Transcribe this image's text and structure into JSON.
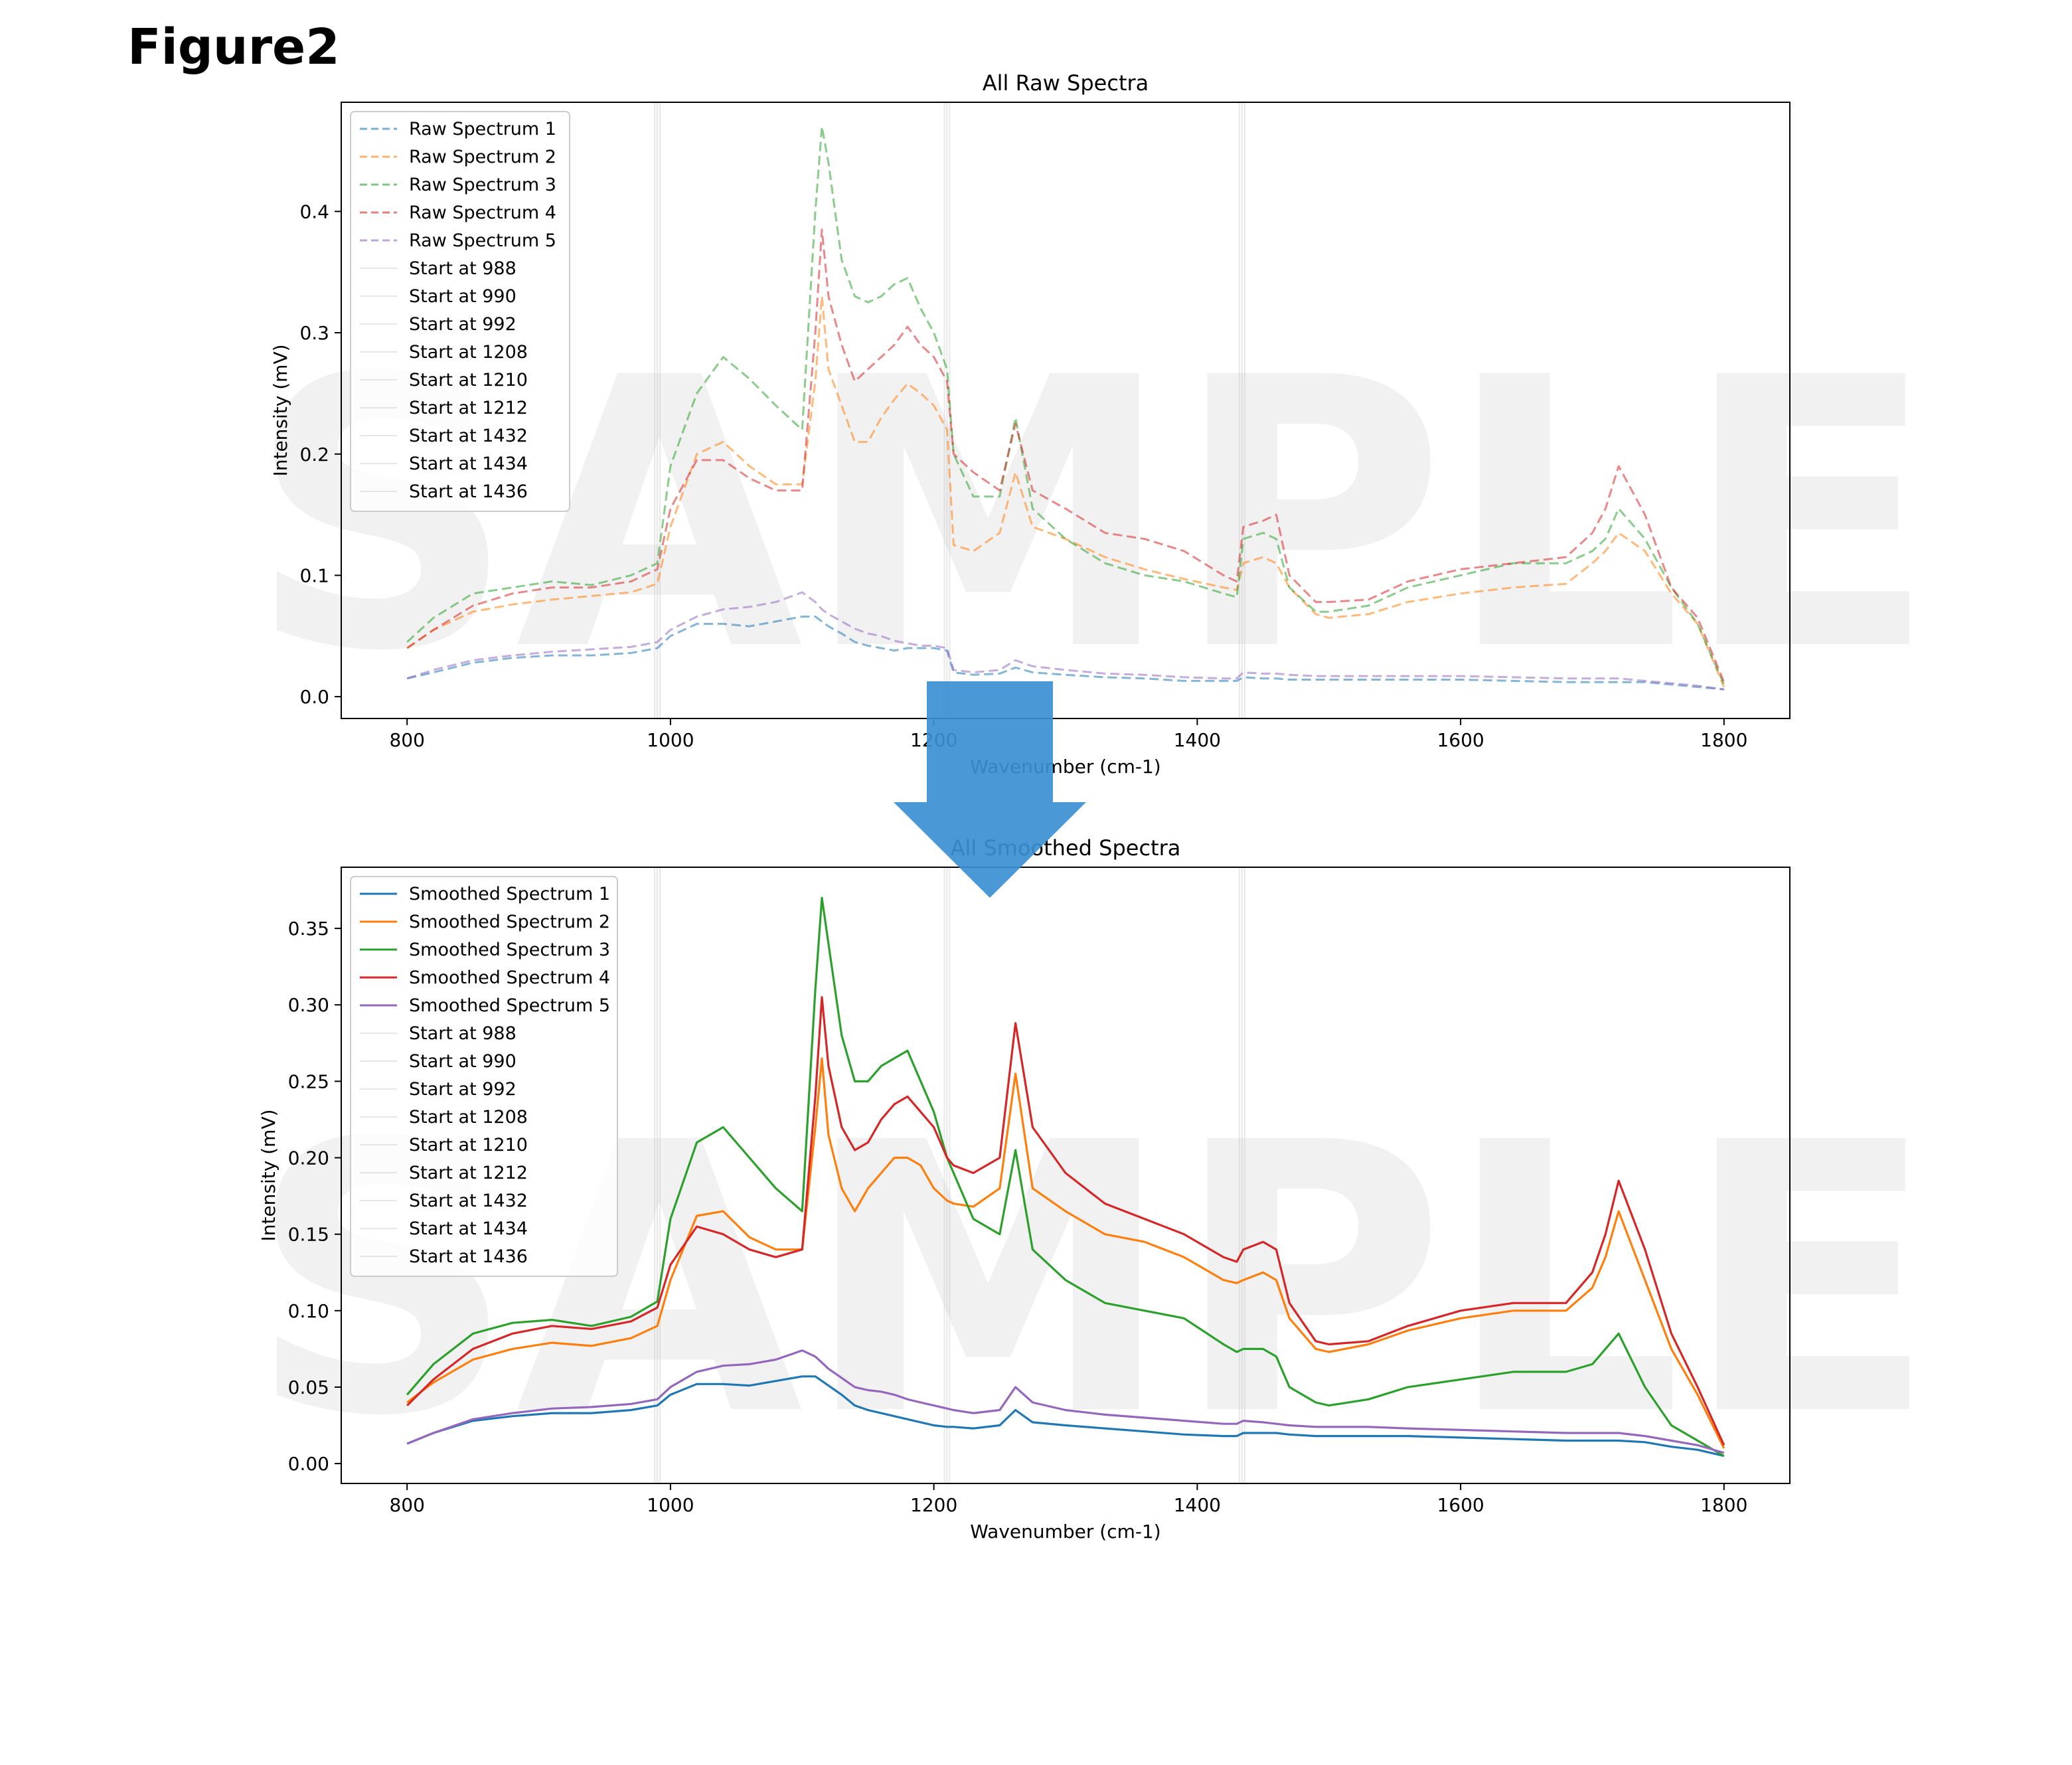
{
  "figure_label": "Figure2",
  "watermark": "SAMPLE",
  "colors": {
    "s1": "#1f77b4",
    "s2": "#ff7f0e",
    "s3": "#2ca02c",
    "s4": "#d62728",
    "s5": "#9467bd",
    "arrow": "#3c8fd2",
    "vline": "#bbbbbb"
  },
  "chart_data": [
    {
      "type": "line",
      "title": "All Raw Spectra",
      "xlabel": "Wavenumber (cm-1)",
      "ylabel": "Intensity (mV)",
      "xlim": [
        750,
        1850
      ],
      "ylim": [
        -0.018,
        0.49
      ],
      "xticks": [
        800,
        1000,
        1200,
        1400,
        1600,
        1800
      ],
      "yticks": [
        0.0,
        0.1,
        0.2,
        0.3,
        0.4
      ],
      "ytick_labels": [
        "0.0",
        "0.1",
        "0.2",
        "0.3",
        "0.4"
      ],
      "line_style": "dashed",
      "legend_position": "upper-left",
      "vertical_lines": [
        988,
        990,
        992,
        1208,
        1210,
        1212,
        1432,
        1434,
        1436
      ],
      "vline_labels": [
        "Start at 988",
        "Start at 990",
        "Start at 992",
        "Start at 1208",
        "Start at 1210",
        "Start at 1212",
        "Start at 1432",
        "Start at 1434",
        "Start at 1436"
      ],
      "x": [
        800,
        820,
        850,
        880,
        910,
        940,
        970,
        990,
        1000,
        1020,
        1040,
        1060,
        1080,
        1100,
        1110,
        1115,
        1120,
        1130,
        1140,
        1150,
        1160,
        1170,
        1180,
        1190,
        1200,
        1210,
        1215,
        1230,
        1250,
        1262,
        1275,
        1300,
        1330,
        1360,
        1390,
        1420,
        1430,
        1435,
        1450,
        1460,
        1470,
        1490,
        1500,
        1530,
        1560,
        1600,
        1640,
        1680,
        1700,
        1710,
        1720,
        1740,
        1760,
        1780,
        1800
      ],
      "series": [
        {
          "name": "Raw Spectrum 1",
          "color_key": "s1",
          "values": [
            0.015,
            0.02,
            0.028,
            0.032,
            0.034,
            0.034,
            0.036,
            0.04,
            0.05,
            0.06,
            0.06,
            0.058,
            0.062,
            0.066,
            0.066,
            0.062,
            0.058,
            0.052,
            0.045,
            0.042,
            0.04,
            0.038,
            0.04,
            0.04,
            0.04,
            0.038,
            0.02,
            0.018,
            0.019,
            0.024,
            0.02,
            0.018,
            0.016,
            0.015,
            0.013,
            0.013,
            0.013,
            0.016,
            0.015,
            0.015,
            0.014,
            0.014,
            0.014,
            0.014,
            0.014,
            0.014,
            0.013,
            0.012,
            0.012,
            0.012,
            0.012,
            0.012,
            0.01,
            0.008,
            0.006
          ]
        },
        {
          "name": "Raw Spectrum 2",
          "color_key": "s2",
          "values": [
            0.04,
            0.055,
            0.07,
            0.076,
            0.08,
            0.083,
            0.086,
            0.093,
            0.14,
            0.2,
            0.21,
            0.19,
            0.175,
            0.175,
            0.26,
            0.33,
            0.27,
            0.24,
            0.21,
            0.21,
            0.23,
            0.245,
            0.258,
            0.25,
            0.24,
            0.22,
            0.125,
            0.12,
            0.135,
            0.185,
            0.14,
            0.13,
            0.115,
            0.105,
            0.097,
            0.09,
            0.088,
            0.11,
            0.115,
            0.11,
            0.09,
            0.068,
            0.065,
            0.068,
            0.078,
            0.085,
            0.09,
            0.093,
            0.11,
            0.12,
            0.135,
            0.12,
            0.085,
            0.06,
            0.008
          ]
        },
        {
          "name": "Raw Spectrum 3",
          "color_key": "s3",
          "values": [
            0.045,
            0.065,
            0.085,
            0.09,
            0.095,
            0.092,
            0.1,
            0.11,
            0.19,
            0.25,
            0.28,
            0.262,
            0.24,
            0.22,
            0.4,
            0.47,
            0.44,
            0.36,
            0.33,
            0.325,
            0.33,
            0.34,
            0.345,
            0.32,
            0.3,
            0.27,
            0.2,
            0.165,
            0.165,
            0.23,
            0.155,
            0.13,
            0.11,
            0.1,
            0.095,
            0.085,
            0.082,
            0.13,
            0.135,
            0.13,
            0.09,
            0.07,
            0.07,
            0.075,
            0.09,
            0.1,
            0.11,
            0.11,
            0.12,
            0.13,
            0.155,
            0.13,
            0.09,
            0.06,
            0.01
          ]
        },
        {
          "name": "Raw Spectrum 4",
          "color_key": "s4",
          "values": [
            0.04,
            0.055,
            0.075,
            0.085,
            0.09,
            0.09,
            0.095,
            0.105,
            0.155,
            0.195,
            0.195,
            0.18,
            0.17,
            0.17,
            0.3,
            0.385,
            0.33,
            0.29,
            0.26,
            0.27,
            0.28,
            0.29,
            0.305,
            0.29,
            0.28,
            0.26,
            0.2,
            0.185,
            0.17,
            0.225,
            0.17,
            0.155,
            0.135,
            0.13,
            0.12,
            0.1,
            0.095,
            0.14,
            0.145,
            0.15,
            0.1,
            0.078,
            0.078,
            0.08,
            0.095,
            0.105,
            0.11,
            0.115,
            0.135,
            0.155,
            0.19,
            0.15,
            0.09,
            0.065,
            0.012
          ]
        },
        {
          "name": "Raw Spectrum 5",
          "color_key": "s5",
          "values": [
            0.015,
            0.022,
            0.03,
            0.034,
            0.037,
            0.039,
            0.041,
            0.045,
            0.055,
            0.066,
            0.072,
            0.074,
            0.078,
            0.086,
            0.078,
            0.072,
            0.068,
            0.062,
            0.056,
            0.052,
            0.05,
            0.046,
            0.044,
            0.042,
            0.042,
            0.04,
            0.022,
            0.02,
            0.022,
            0.03,
            0.025,
            0.022,
            0.019,
            0.018,
            0.016,
            0.015,
            0.015,
            0.02,
            0.019,
            0.019,
            0.018,
            0.017,
            0.017,
            0.017,
            0.017,
            0.017,
            0.016,
            0.015,
            0.015,
            0.015,
            0.015,
            0.013,
            0.011,
            0.009,
            0.006
          ]
        }
      ]
    },
    {
      "type": "line",
      "title": "All Smoothed Spectra",
      "xlabel": "Wavenumber (cm-1)",
      "ylabel": "Intensity (mV)",
      "xlim": [
        750,
        1850
      ],
      "ylim": [
        -0.013,
        0.39
      ],
      "xticks": [
        800,
        1000,
        1200,
        1400,
        1600,
        1800
      ],
      "yticks": [
        0.0,
        0.05,
        0.1,
        0.15,
        0.2,
        0.25,
        0.3,
        0.35
      ],
      "ytick_labels": [
        "0.00",
        "0.05",
        "0.10",
        "0.15",
        "0.20",
        "0.25",
        "0.30",
        "0.35"
      ],
      "line_style": "solid",
      "legend_position": "upper-left",
      "vertical_lines": [
        988,
        990,
        992,
        1208,
        1210,
        1212,
        1432,
        1434,
        1436
      ],
      "vline_labels": [
        "Start at 988",
        "Start at 990",
        "Start at 992",
        "Start at 1208",
        "Start at 1210",
        "Start at 1212",
        "Start at 1432",
        "Start at 1434",
        "Start at 1436"
      ],
      "x": [
        800,
        820,
        850,
        880,
        910,
        940,
        970,
        990,
        1000,
        1020,
        1040,
        1060,
        1080,
        1100,
        1110,
        1115,
        1120,
        1130,
        1140,
        1150,
        1160,
        1170,
        1180,
        1190,
        1200,
        1210,
        1215,
        1230,
        1250,
        1262,
        1275,
        1300,
        1330,
        1360,
        1390,
        1420,
        1430,
        1435,
        1450,
        1460,
        1470,
        1490,
        1500,
        1530,
        1560,
        1600,
        1640,
        1680,
        1700,
        1710,
        1720,
        1740,
        1760,
        1780,
        1800
      ],
      "series": [
        {
          "name": "Smoothed Spectrum 1",
          "color_key": "s1",
          "values": [
            0.013,
            0.02,
            0.028,
            0.031,
            0.033,
            0.033,
            0.035,
            0.038,
            0.045,
            0.052,
            0.052,
            0.051,
            0.054,
            0.057,
            0.057,
            0.054,
            0.051,
            0.045,
            0.038,
            0.035,
            0.033,
            0.031,
            0.029,
            0.027,
            0.025,
            0.024,
            0.024,
            0.023,
            0.025,
            0.035,
            0.027,
            0.025,
            0.023,
            0.021,
            0.019,
            0.018,
            0.018,
            0.02,
            0.02,
            0.02,
            0.019,
            0.018,
            0.018,
            0.018,
            0.018,
            0.017,
            0.016,
            0.015,
            0.015,
            0.015,
            0.015,
            0.014,
            0.011,
            0.009,
            0.005
          ]
        },
        {
          "name": "Smoothed Spectrum 2",
          "color_key": "s2",
          "values": [
            0.04,
            0.053,
            0.068,
            0.075,
            0.079,
            0.077,
            0.082,
            0.09,
            0.12,
            0.162,
            0.165,
            0.148,
            0.14,
            0.14,
            0.22,
            0.265,
            0.215,
            0.18,
            0.165,
            0.18,
            0.19,
            0.2,
            0.2,
            0.195,
            0.18,
            0.172,
            0.17,
            0.168,
            0.18,
            0.255,
            0.18,
            0.165,
            0.15,
            0.145,
            0.135,
            0.12,
            0.118,
            0.12,
            0.125,
            0.12,
            0.095,
            0.075,
            0.073,
            0.078,
            0.087,
            0.095,
            0.1,
            0.1,
            0.115,
            0.135,
            0.165,
            0.12,
            0.075,
            0.045,
            0.01
          ]
        },
        {
          "name": "Smoothed Spectrum 3",
          "color_key": "s3",
          "values": [
            0.045,
            0.065,
            0.085,
            0.092,
            0.094,
            0.09,
            0.096,
            0.106,
            0.16,
            0.21,
            0.22,
            0.2,
            0.18,
            0.165,
            0.31,
            0.37,
            0.34,
            0.28,
            0.25,
            0.25,
            0.26,
            0.265,
            0.27,
            0.25,
            0.23,
            0.2,
            0.19,
            0.16,
            0.15,
            0.205,
            0.14,
            0.12,
            0.105,
            0.1,
            0.095,
            0.078,
            0.073,
            0.075,
            0.075,
            0.07,
            0.05,
            0.04,
            0.038,
            0.042,
            0.05,
            0.055,
            0.06,
            0.06,
            0.065,
            0.075,
            0.085,
            0.05,
            0.025,
            0.015,
            0.005
          ]
        },
        {
          "name": "Smoothed Spectrum 4",
          "color_key": "s4",
          "values": [
            0.038,
            0.055,
            0.075,
            0.085,
            0.09,
            0.088,
            0.093,
            0.102,
            0.13,
            0.155,
            0.15,
            0.14,
            0.135,
            0.14,
            0.24,
            0.305,
            0.26,
            0.22,
            0.205,
            0.21,
            0.225,
            0.235,
            0.24,
            0.23,
            0.22,
            0.2,
            0.195,
            0.19,
            0.2,
            0.288,
            0.22,
            0.19,
            0.17,
            0.16,
            0.15,
            0.135,
            0.132,
            0.14,
            0.145,
            0.14,
            0.105,
            0.08,
            0.078,
            0.08,
            0.09,
            0.1,
            0.105,
            0.105,
            0.125,
            0.15,
            0.185,
            0.14,
            0.085,
            0.05,
            0.012
          ]
        },
        {
          "name": "Smoothed Spectrum 5",
          "color_key": "s5",
          "values": [
            0.013,
            0.02,
            0.029,
            0.033,
            0.036,
            0.037,
            0.039,
            0.042,
            0.05,
            0.06,
            0.064,
            0.065,
            0.068,
            0.074,
            0.07,
            0.066,
            0.062,
            0.056,
            0.05,
            0.048,
            0.047,
            0.045,
            0.042,
            0.04,
            0.038,
            0.036,
            0.035,
            0.033,
            0.035,
            0.05,
            0.04,
            0.035,
            0.032,
            0.03,
            0.028,
            0.026,
            0.026,
            0.028,
            0.027,
            0.026,
            0.025,
            0.024,
            0.024,
            0.024,
            0.023,
            0.022,
            0.021,
            0.02,
            0.02,
            0.02,
            0.02,
            0.018,
            0.015,
            0.012,
            0.007
          ]
        }
      ]
    }
  ]
}
